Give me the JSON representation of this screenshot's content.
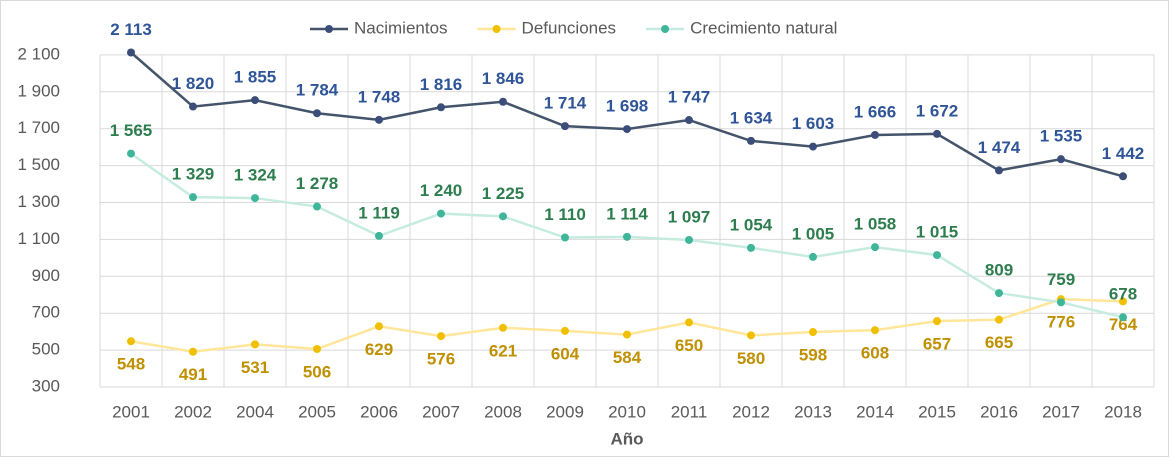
{
  "chart_data": {
    "type": "line",
    "xlabel": "Año",
    "categories": [
      "2001",
      "2002",
      "2004",
      "2005",
      "2006",
      "2007",
      "2008",
      "2009",
      "2010",
      "2011",
      "2012",
      "2013",
      "2014",
      "2015",
      "2016",
      "2017",
      "2018"
    ],
    "series": [
      {
        "name": "Nacimientos",
        "color": "#44546a",
        "marker_color": "#3b4e7a",
        "label_color": "#2f5597",
        "label_position": "above",
        "values": [
          2113,
          1820,
          1855,
          1784,
          1748,
          1816,
          1846,
          1714,
          1698,
          1747,
          1634,
          1603,
          1666,
          1672,
          1474,
          1535,
          1442
        ],
        "value_labels": [
          "2 113",
          "1 820",
          "1 855",
          "1 784",
          "1 748",
          "1 816",
          "1 846",
          "1 714",
          "1 698",
          "1 747",
          "1 634",
          "1 603",
          "1 666",
          "1 672",
          "1 474",
          "1 535",
          "1 442"
        ]
      },
      {
        "name": "Defunciones",
        "color": "#ffe699",
        "marker_color": "#f0c000",
        "label_color": "#bf9000",
        "label_position": "below",
        "values": [
          548,
          491,
          531,
          506,
          629,
          576,
          621,
          604,
          584,
          650,
          580,
          598,
          608,
          657,
          665,
          776,
          764
        ]
      },
      {
        "name": "Crecimiento natural",
        "color": "#c6ebe1",
        "marker_color": "#3fb59a",
        "label_color": "#2e7d4f",
        "label_position": "above",
        "values": [
          1565,
          1329,
          1324,
          1278,
          1119,
          1240,
          1225,
          1110,
          1114,
          1097,
          1054,
          1005,
          1058,
          1015,
          809,
          759,
          678
        ],
        "value_labels": [
          "1 565",
          "1 329",
          "1 324",
          "1 278",
          "1 119",
          "1 240",
          "1 225",
          "1 110",
          "1 114",
          "1 097",
          "1 054",
          "1 005",
          "1 058",
          "1 015",
          "809",
          "759",
          "678"
        ]
      }
    ],
    "ylim": [
      300,
      2300
    ],
    "yticks": [
      300,
      500,
      700,
      900,
      {
        "value": 1100,
        "label": "1 100"
      },
      {
        "value": 1300,
        "label": "1 300"
      },
      {
        "value": 1500,
        "label": "1 500"
      },
      {
        "value": 1700,
        "label": "1 700"
      },
      {
        "value": 1900,
        "label": "1 900"
      },
      {
        "value": 2100,
        "label": "2 100"
      }
    ],
    "grid": true,
    "legend": "top"
  }
}
